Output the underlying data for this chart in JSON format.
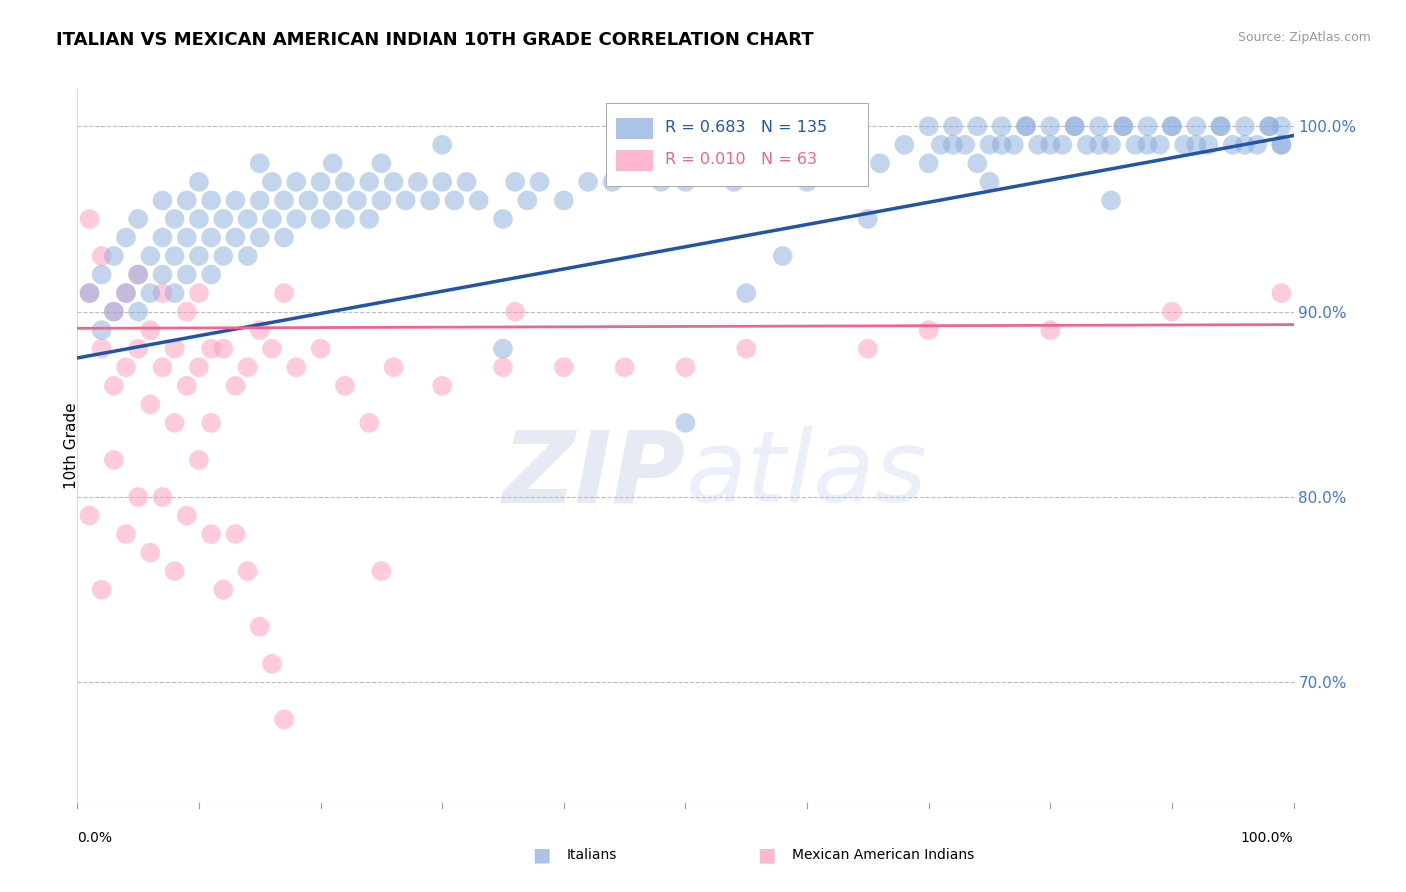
{
  "title": "ITALIAN VS MEXICAN AMERICAN INDIAN 10TH GRADE CORRELATION CHART",
  "source": "Source: ZipAtlas.com",
  "ylabel": "10th Grade",
  "right_yticks": [
    "100.0%",
    "90.0%",
    "80.0%",
    "70.0%"
  ],
  "right_ytick_vals": [
    1.0,
    0.9,
    0.8,
    0.7
  ],
  "legend_italians": "Italians",
  "legend_mexican": "Mexican American Indians",
  "R_italian": 0.683,
  "N_italian": 135,
  "R_mexican": 0.01,
  "N_mexican": 63,
  "blue_color": "#88AADD",
  "pink_color": "#FF99BB",
  "trend_blue": "#2255AA",
  "trend_pink": "#EE6688",
  "xlim": [
    0.0,
    1.0
  ],
  "ylim": [
    0.635,
    1.02
  ],
  "grid_color": "#BBBBBB",
  "background_color": "#FFFFFF",
  "blue_scatter_x": [
    0.01,
    0.02,
    0.02,
    0.03,
    0.03,
    0.04,
    0.04,
    0.05,
    0.05,
    0.05,
    0.06,
    0.06,
    0.07,
    0.07,
    0.07,
    0.08,
    0.08,
    0.08,
    0.09,
    0.09,
    0.09,
    0.1,
    0.1,
    0.1,
    0.11,
    0.11,
    0.11,
    0.12,
    0.12,
    0.13,
    0.13,
    0.14,
    0.14,
    0.15,
    0.15,
    0.15,
    0.16,
    0.16,
    0.17,
    0.17,
    0.18,
    0.18,
    0.19,
    0.2,
    0.2,
    0.21,
    0.21,
    0.22,
    0.22,
    0.23,
    0.24,
    0.24,
    0.25,
    0.25,
    0.26,
    0.27,
    0.28,
    0.29,
    0.3,
    0.3,
    0.31,
    0.32,
    0.33,
    0.35,
    0.36,
    0.37,
    0.38,
    0.4,
    0.42,
    0.44,
    0.46,
    0.48,
    0.5,
    0.52,
    0.54,
    0.56,
    0.6,
    0.62,
    0.64,
    0.66,
    0.68,
    0.7,
    0.72,
    0.74,
    0.76,
    0.78,
    0.8,
    0.82,
    0.84,
    0.86,
    0.88,
    0.9,
    0.92,
    0.94,
    0.96,
    0.98,
    0.99,
    0.99,
    0.99,
    0.98,
    0.97,
    0.96,
    0.95,
    0.94,
    0.93,
    0.92,
    0.91,
    0.9,
    0.89,
    0.88,
    0.87,
    0.86,
    0.85,
    0.84,
    0.83,
    0.82,
    0.81,
    0.8,
    0.79,
    0.78,
    0.77,
    0.76,
    0.75,
    0.74,
    0.73,
    0.72,
    0.71,
    0.7,
    0.35,
    0.5,
    0.55,
    0.58,
    0.65,
    0.75,
    0.85
  ],
  "blue_scatter_y": [
    0.91,
    0.92,
    0.89,
    0.9,
    0.93,
    0.91,
    0.94,
    0.92,
    0.95,
    0.9,
    0.93,
    0.91,
    0.94,
    0.92,
    0.96,
    0.91,
    0.93,
    0.95,
    0.92,
    0.94,
    0.96,
    0.93,
    0.95,
    0.97,
    0.92,
    0.94,
    0.96,
    0.93,
    0.95,
    0.94,
    0.96,
    0.93,
    0.95,
    0.94,
    0.96,
    0.98,
    0.95,
    0.97,
    0.94,
    0.96,
    0.95,
    0.97,
    0.96,
    0.95,
    0.97,
    0.96,
    0.98,
    0.95,
    0.97,
    0.96,
    0.97,
    0.95,
    0.96,
    0.98,
    0.97,
    0.96,
    0.97,
    0.96,
    0.97,
    0.99,
    0.96,
    0.97,
    0.96,
    0.95,
    0.97,
    0.96,
    0.97,
    0.96,
    0.97,
    0.97,
    0.98,
    0.97,
    0.97,
    0.98,
    0.97,
    0.98,
    0.97,
    0.98,
    0.99,
    0.98,
    0.99,
    0.98,
    0.99,
    0.98,
    0.99,
    1.0,
    0.99,
    1.0,
    0.99,
    1.0,
    0.99,
    1.0,
    0.99,
    1.0,
    0.99,
    1.0,
    0.99,
    1.0,
    0.99,
    1.0,
    0.99,
    1.0,
    0.99,
    1.0,
    0.99,
    1.0,
    0.99,
    1.0,
    0.99,
    1.0,
    0.99,
    1.0,
    0.99,
    1.0,
    0.99,
    1.0,
    0.99,
    1.0,
    0.99,
    1.0,
    0.99,
    1.0,
    0.99,
    1.0,
    0.99,
    1.0,
    0.99,
    1.0,
    0.88,
    0.84,
    0.91,
    0.93,
    0.95,
    0.97,
    0.96
  ],
  "pink_scatter_x": [
    0.01,
    0.01,
    0.02,
    0.02,
    0.03,
    0.03,
    0.04,
    0.04,
    0.05,
    0.05,
    0.06,
    0.06,
    0.07,
    0.07,
    0.08,
    0.08,
    0.09,
    0.09,
    0.1,
    0.1,
    0.11,
    0.11,
    0.12,
    0.13,
    0.14,
    0.15,
    0.16,
    0.17,
    0.18,
    0.2,
    0.22,
    0.24,
    0.26,
    0.3,
    0.35,
    0.36,
    0.4,
    0.45,
    0.5,
    0.55,
    0.65,
    0.7,
    0.8,
    0.9,
    0.99,
    0.01,
    0.02,
    0.03,
    0.04,
    0.05,
    0.06,
    0.07,
    0.08,
    0.09,
    0.1,
    0.11,
    0.12,
    0.13,
    0.14,
    0.15,
    0.16,
    0.17,
    0.25
  ],
  "pink_scatter_y": [
    0.95,
    0.91,
    0.93,
    0.88,
    0.9,
    0.86,
    0.91,
    0.87,
    0.92,
    0.88,
    0.89,
    0.85,
    0.91,
    0.87,
    0.88,
    0.84,
    0.9,
    0.86,
    0.91,
    0.87,
    0.88,
    0.84,
    0.88,
    0.86,
    0.87,
    0.89,
    0.88,
    0.91,
    0.87,
    0.88,
    0.86,
    0.84,
    0.87,
    0.86,
    0.87,
    0.9,
    0.87,
    0.87,
    0.87,
    0.88,
    0.88,
    0.89,
    0.89,
    0.9,
    0.91,
    0.79,
    0.75,
    0.82,
    0.78,
    0.8,
    0.77,
    0.8,
    0.76,
    0.79,
    0.82,
    0.78,
    0.75,
    0.78,
    0.76,
    0.73,
    0.71,
    0.68,
    0.76
  ]
}
